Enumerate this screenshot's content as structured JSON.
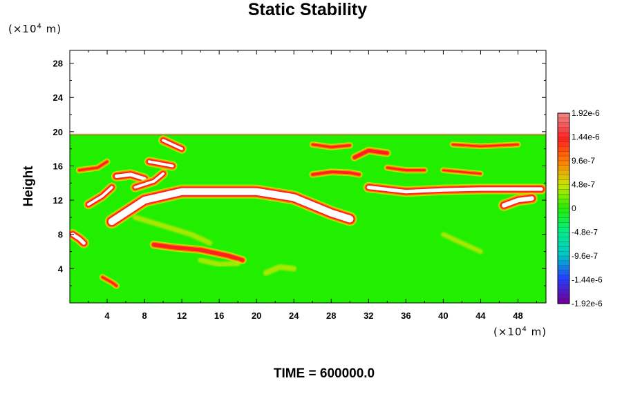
{
  "chart_data": {
    "type": "heatmap",
    "title": "Static Stability",
    "ylabel": "Height",
    "y_unit_base": "(×10",
    "y_unit_exp": "4",
    "y_unit_suffix": " m)",
    "x_unit_base": "(×10",
    "x_unit_exp": "4",
    "x_unit_suffix": " m)",
    "footer": "TIME = 600000.0",
    "xlim": [
      0,
      51
    ],
    "ylim": [
      0,
      29.5
    ],
    "x_ticks": [
      4,
      8,
      12,
      16,
      20,
      24,
      28,
      32,
      36,
      40,
      44,
      48
    ],
    "x_tick_labels": [
      "4",
      "8",
      "12",
      "16",
      "20",
      "24",
      "28",
      "32",
      "36",
      "40",
      "44",
      "48"
    ],
    "y_ticks": [
      4,
      8,
      12,
      16,
      20,
      24,
      28
    ],
    "y_tick_labels": [
      "4",
      "8",
      "12",
      "16",
      "20",
      "24",
      "28"
    ],
    "field_top": 19.7,
    "background_value": 0,
    "colorbar": {
      "labels": [
        "1.92e-6",
        "1.44e-6",
        "9.6e-7",
        "4.8e-7",
        "0",
        "-4.8e-7",
        "-9.6e-7",
        "-1.44e-6",
        "-1.92e-6"
      ],
      "values": [
        1.92e-06,
        1.44e-06,
        9.6e-07,
        4.8e-07,
        0,
        -4.8e-07,
        -9.6e-07,
        -1.44e-06,
        -1.92e-06
      ],
      "colors": [
        "#f08080",
        "#ff2020",
        "#ff8000",
        "#c8e800",
        "#22ee00",
        "#00ee88",
        "#00c8c8",
        "#2040ff",
        "#7000a0"
      ]
    },
    "features": [
      {
        "name": "main-stable-layer",
        "kind": "stable",
        "points": [
          [
            4.5,
            9.5
          ],
          [
            8,
            12
          ],
          [
            12,
            13
          ],
          [
            16,
            13
          ],
          [
            20,
            13
          ],
          [
            24,
            12.3
          ],
          [
            28,
            10.5
          ],
          [
            30,
            9.8
          ]
        ],
        "thickness": 0.9
      },
      {
        "name": "upper-layer-east",
        "kind": "stable",
        "points": [
          [
            32,
            13.5
          ],
          [
            36,
            13
          ],
          [
            40,
            13.2
          ],
          [
            44,
            13.3
          ],
          [
            48,
            13.3
          ],
          [
            50.5,
            13.3
          ]
        ],
        "thickness": 0.5
      },
      {
        "name": "east-blob",
        "kind": "stable",
        "points": [
          [
            46.5,
            11.4
          ],
          [
            48,
            12
          ],
          [
            49.5,
            12.2
          ]
        ],
        "thickness": 0.6
      },
      {
        "name": "west-upper-cloud",
        "kind": "stable",
        "points": [
          [
            5,
            14.8
          ],
          [
            6.5,
            15
          ],
          [
            8,
            14.5
          ]
        ],
        "thickness": 0.5
      },
      {
        "name": "west-upper-cloud-2",
        "kind": "stable",
        "points": [
          [
            7,
            13.5
          ],
          [
            9,
            14.2
          ],
          [
            10,
            15.1
          ]
        ],
        "thickness": 0.4
      },
      {
        "name": "west-cloud-3",
        "kind": "stable",
        "points": [
          [
            2,
            11.5
          ],
          [
            3.5,
            12.5
          ],
          [
            4.5,
            13.5
          ]
        ],
        "thickness": 0.4
      },
      {
        "name": "west-cloud-4",
        "kind": "stable",
        "points": [
          [
            8.5,
            16.5
          ],
          [
            10,
            16.2
          ],
          [
            11,
            16
          ]
        ],
        "thickness": 0.4
      },
      {
        "name": "top-blob-1",
        "kind": "stable",
        "points": [
          [
            10,
            19
          ],
          [
            11,
            18.5
          ],
          [
            12,
            18
          ]
        ],
        "thickness": 0.4
      },
      {
        "name": "left-edge-1",
        "kind": "stable",
        "points": [
          [
            0.3,
            8
          ],
          [
            1,
            7.5
          ],
          [
            1.5,
            7
          ]
        ],
        "thickness": 0.5
      },
      {
        "name": "mid-lower-band",
        "kind": "strong",
        "points": [
          [
            9,
            6.8
          ],
          [
            11,
            6.5
          ],
          [
            14,
            6.2
          ],
          [
            17,
            5.5
          ],
          [
            18.5,
            5
          ]
        ],
        "thickness": 0.45
      },
      {
        "name": "upper-band-30",
        "kind": "strong",
        "points": [
          [
            26,
            15
          ],
          [
            28,
            15.3
          ],
          [
            30,
            15.2
          ],
          [
            31,
            15
          ]
        ],
        "thickness": 0.3
      },
      {
        "name": "upper-band-32",
        "kind": "strong",
        "points": [
          [
            30.5,
            17
          ],
          [
            32,
            17.8
          ],
          [
            34,
            17.5
          ]
        ],
        "thickness": 0.4
      },
      {
        "name": "upper-band-36",
        "kind": "strong",
        "points": [
          [
            34,
            15.8
          ],
          [
            36,
            15.5
          ],
          [
            38,
            15.5
          ]
        ],
        "thickness": 0.25
      },
      {
        "name": "upper-band-28",
        "kind": "strong",
        "points": [
          [
            26,
            18.5
          ],
          [
            28,
            18.2
          ],
          [
            30,
            18.4
          ]
        ],
        "thickness": 0.25
      },
      {
        "name": "east-band-top",
        "kind": "strong",
        "points": [
          [
            41,
            18.5
          ],
          [
            44,
            18.3
          ],
          [
            48,
            18.5
          ]
        ],
        "thickness": 0.2
      },
      {
        "name": "east-band-mid",
        "kind": "strong",
        "points": [
          [
            40,
            15.5
          ],
          [
            42,
            15.3
          ],
          [
            44,
            15.1
          ]
        ],
        "thickness": 0.2
      },
      {
        "name": "lower-left-1",
        "kind": "strong",
        "points": [
          [
            3.5,
            3
          ],
          [
            4.5,
            2.4
          ],
          [
            5,
            2
          ]
        ],
        "thickness": 0.25
      },
      {
        "name": "west-streak",
        "kind": "strong",
        "points": [
          [
            1,
            15.5
          ],
          [
            3,
            15.8
          ],
          [
            4,
            16.5
          ]
        ],
        "thickness": 0.25
      },
      {
        "name": "weak-arc-1",
        "kind": "weak",
        "points": [
          [
            7,
            10
          ],
          [
            10,
            9
          ],
          [
            13,
            8
          ],
          [
            15,
            7
          ]
        ],
        "thickness": 0.2
      },
      {
        "name": "weak-arc-2",
        "kind": "weak",
        "points": [
          [
            21,
            3.5
          ],
          [
            22.5,
            4.2
          ],
          [
            24,
            4
          ]
        ],
        "thickness": 0.25
      },
      {
        "name": "weak-arc-3",
        "kind": "weak",
        "points": [
          [
            14,
            5
          ],
          [
            16,
            4.5
          ],
          [
            18,
            4.6
          ]
        ],
        "thickness": 0.2
      },
      {
        "name": "weak-arc-4",
        "kind": "weak",
        "points": [
          [
            40,
            8
          ],
          [
            42,
            7
          ],
          [
            44,
            6
          ]
        ],
        "thickness": 0.15
      }
    ]
  }
}
